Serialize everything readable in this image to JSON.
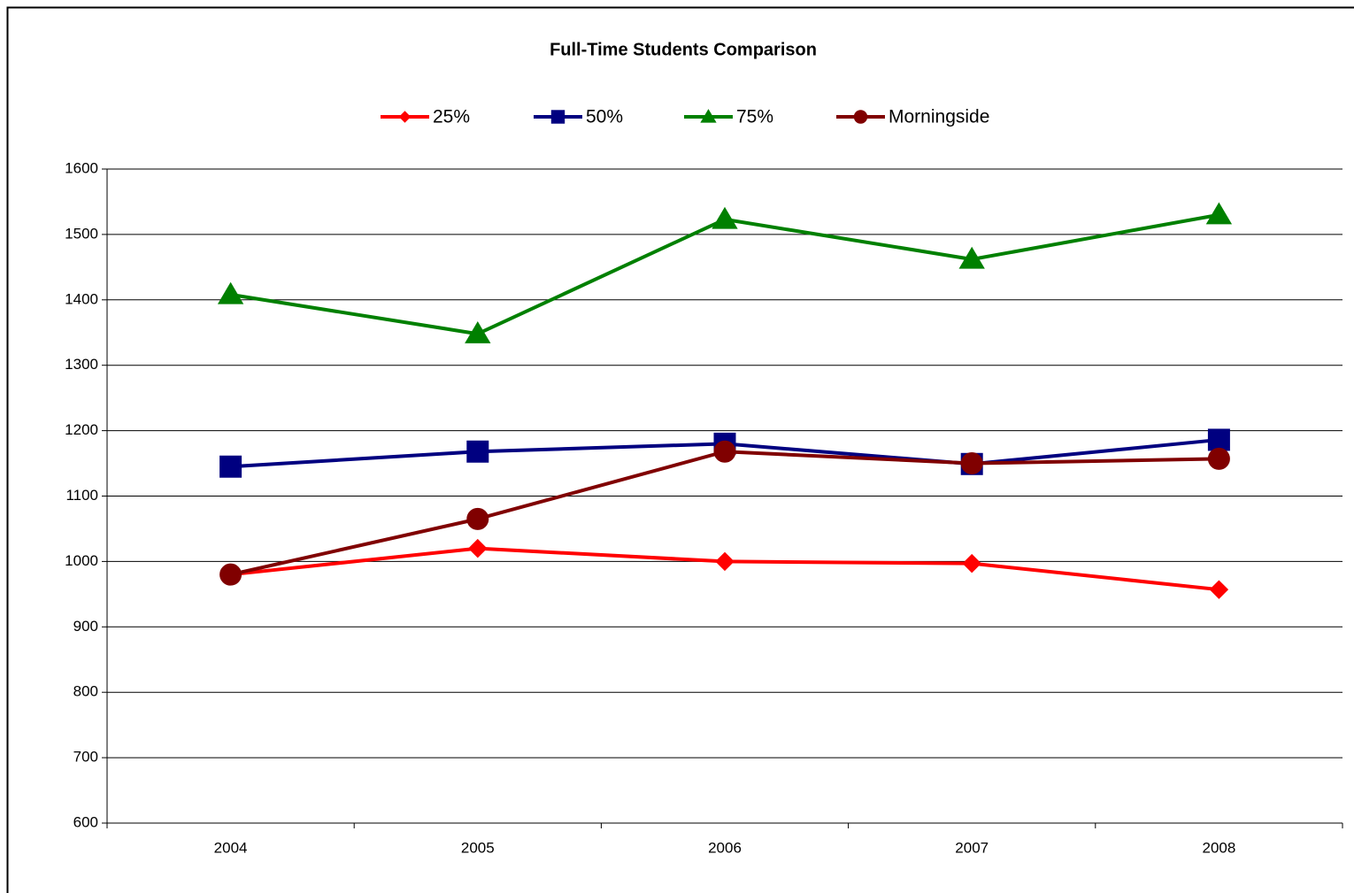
{
  "chart_data": {
    "type": "line",
    "title": "Full-Time Students Comparison",
    "categories": [
      "2004",
      "2005",
      "2006",
      "2007",
      "2008"
    ],
    "series": [
      {
        "name": "25%",
        "color": "#ff0000",
        "marker": "diamond",
        "values": [
          980,
          1020,
          1000,
          997,
          957
        ]
      },
      {
        "name": "50%",
        "color": "#000080",
        "marker": "square",
        "values": [
          1145,
          1168,
          1180,
          1149,
          1186
        ]
      },
      {
        "name": "75%",
        "color": "#008000",
        "marker": "triangle",
        "values": [
          1408,
          1348,
          1523,
          1462,
          1530
        ]
      },
      {
        "name": "Morningside",
        "color": "#800000",
        "marker": "circle",
        "values": [
          980,
          1065,
          1168,
          1150,
          1157
        ]
      }
    ],
    "ylim": [
      600,
      1600
    ],
    "yticks": [
      600,
      700,
      800,
      900,
      1000,
      1100,
      1200,
      1300,
      1400,
      1500,
      1600
    ],
    "grid": true,
    "legend": "top"
  }
}
